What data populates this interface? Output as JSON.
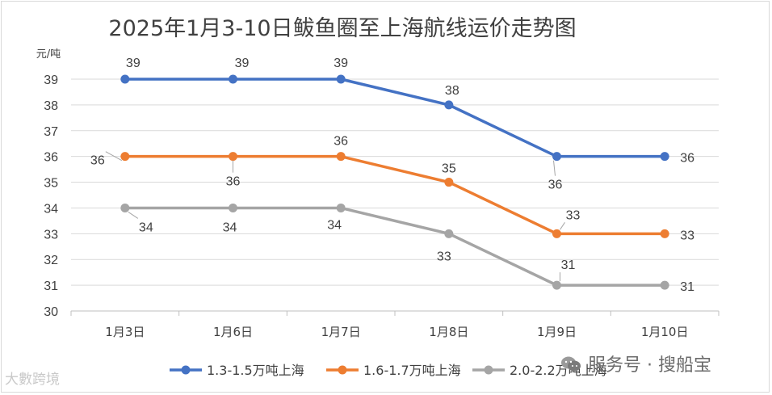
{
  "chart_data": {
    "type": "line",
    "title": "2025年1月3-10日鲅鱼圈至上海航线运价走势图",
    "ylabel": "元/吨",
    "xlabel": "",
    "categories": [
      "1月3日",
      "1月6日",
      "1月7日",
      "1月8日",
      "1月9日",
      "1月10日"
    ],
    "y_ticks": [
      "30",
      "31",
      "32",
      "33",
      "34",
      "35",
      "36",
      "37",
      "38",
      "39"
    ],
    "ylim": [
      30,
      39
    ],
    "grid": true,
    "legend_position": "bottom",
    "series": [
      {
        "name": "1.3-1.5万吨上海",
        "color": "#4472c4",
        "values": [
          39,
          39,
          39,
          38,
          36,
          36
        ]
      },
      {
        "name": "1.6-1.7万吨上海",
        "color": "#ed7d31",
        "values": [
          36,
          36,
          36,
          35,
          33,
          33
        ]
      },
      {
        "name": "2.0-2.2万吨上海",
        "color": "#a5a5a5",
        "values": [
          34,
          34,
          34,
          33,
          31,
          31
        ]
      }
    ]
  },
  "watermarks": {
    "left": "大數跨境",
    "right": "服务号 · 搜船宝"
  }
}
